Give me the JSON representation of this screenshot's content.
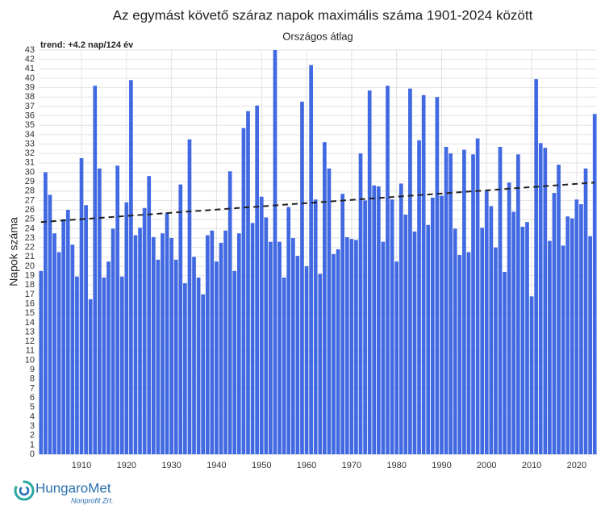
{
  "chart_data": {
    "type": "bar",
    "title": "Az egymást követő száraz napok maximális száma 1901-2024 között",
    "subtitle": "Országos átlag",
    "ylabel": "Napok száma",
    "color": "#4169e1",
    "grid": true,
    "x": [
      1901,
      1902,
      1903,
      1904,
      1905,
      1906,
      1907,
      1908,
      1909,
      1910,
      1911,
      1912,
      1913,
      1914,
      1915,
      1916,
      1917,
      1918,
      1919,
      1920,
      1921,
      1922,
      1923,
      1924,
      1925,
      1926,
      1927,
      1928,
      1929,
      1930,
      1931,
      1932,
      1933,
      1934,
      1935,
      1936,
      1937,
      1938,
      1939,
      1940,
      1941,
      1942,
      1943,
      1944,
      1945,
      1946,
      1947,
      1948,
      1949,
      1950,
      1951,
      1952,
      1953,
      1954,
      1955,
      1956,
      1957,
      1958,
      1959,
      1960,
      1961,
      1962,
      1963,
      1964,
      1965,
      1966,
      1967,
      1968,
      1969,
      1970,
      1971,
      1972,
      1973,
      1974,
      1975,
      1976,
      1977,
      1978,
      1979,
      1980,
      1981,
      1982,
      1983,
      1984,
      1985,
      1986,
      1987,
      1988,
      1989,
      1990,
      1991,
      1992,
      1993,
      1994,
      1995,
      1996,
      1997,
      1998,
      1999,
      2000,
      2001,
      2002,
      2003,
      2004,
      2005,
      2006,
      2007,
      2008,
      2009,
      2010,
      2011,
      2012,
      2013,
      2014,
      2015,
      2016,
      2017,
      2018,
      2019,
      2020,
      2021,
      2022,
      2023,
      2024
    ],
    "values": [
      19.5,
      30,
      27.6,
      23.5,
      21.5,
      25,
      26,
      22.3,
      18.9,
      31.5,
      26.5,
      16.5,
      39.2,
      30.4,
      18.8,
      20.5,
      24,
      30.7,
      18.9,
      26.8,
      39.8,
      23.3,
      24.1,
      26.2,
      29.6,
      23.1,
      20.7,
      23.5,
      25.7,
      23,
      20.7,
      28.7,
      18.2,
      33.5,
      21,
      18.8,
      17,
      23.3,
      23.8,
      20.5,
      22.5,
      23.8,
      30.1,
      19.5,
      23.5,
      34.7,
      36.5,
      24.6,
      37.1,
      27.4,
      25.2,
      22.6,
      43,
      22.6,
      18.8,
      26.3,
      23,
      21.1,
      37.5,
      20,
      41.4,
      27.1,
      19.2,
      33.2,
      30.4,
      21.3,
      21.8,
      27.7,
      23.1,
      22.9,
      22.8,
      32,
      27,
      38.7,
      28.6,
      28.5,
      22.6,
      39.2,
      27.1,
      20.5,
      28.8,
      25.5,
      38.9,
      23.7,
      33.4,
      38.2,
      24.4,
      27.3,
      38,
      27.5,
      32.7,
      32,
      24,
      21.2,
      32.4,
      21.5,
      31.9,
      33.6,
      24.1,
      28,
      26.4,
      22,
      32.7,
      19.4,
      28.9,
      25.8,
      31.9,
      24.2,
      24.7,
      16.8,
      39.9,
      33.1,
      32.6,
      22.7,
      27.8,
      30.8,
      22.2,
      25.3,
      25.1,
      27.1,
      26.6,
      30.4,
      23.2,
      36.2
    ],
    "trend": {
      "label": "trend: +4.2 nap/124 év",
      "x": [
        1901,
        2024
      ],
      "values": [
        24.7,
        28.9
      ],
      "color": "#222222"
    },
    "xlim": [
      1900.5,
      2024.5
    ],
    "xticks": [
      1910,
      1920,
      1930,
      1940,
      1950,
      1960,
      1970,
      1980,
      1990,
      2000,
      2010,
      2020
    ],
    "ylim": [
      0,
      43
    ],
    "yticks": [
      0,
      1,
      2,
      3,
      4,
      5,
      6,
      7,
      8,
      9,
      10,
      11,
      12,
      13,
      14,
      15,
      16,
      17,
      18,
      19,
      20,
      21,
      22,
      23,
      24,
      25,
      26,
      27,
      28,
      29,
      30,
      31,
      32,
      33,
      34,
      35,
      36,
      37,
      38,
      39,
      40,
      41,
      42,
      43
    ],
    "logo": {
      "name": "HungaroMet",
      "subname": "Nonprofit Zrt."
    }
  }
}
